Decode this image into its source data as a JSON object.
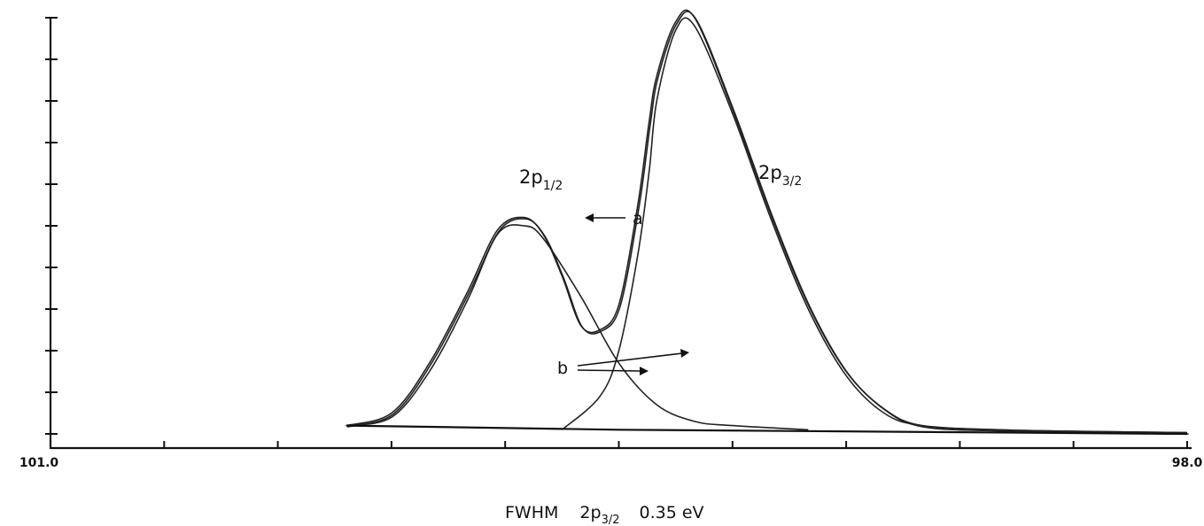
{
  "chart_data": {
    "type": "line",
    "title": "",
    "xlabel": "",
    "ylabel": "",
    "x_reversed": true,
    "xlim": [
      101.0,
      98.0
    ],
    "ylim": [
      0,
      1.0
    ],
    "x_tick_labels": [
      "101.0",
      "98.0"
    ],
    "y_ticks": 10,
    "x_ticks": [
      101.0,
      100.7,
      100.4,
      100.1,
      99.8,
      99.5,
      99.2,
      98.9,
      98.6,
      98.3,
      98.0
    ],
    "series": [
      {
        "role": "a",
        "x": [
          100.22,
          100.1,
          100.0,
          99.9,
          99.82,
          99.75,
          99.7,
          99.65,
          99.6,
          99.55,
          99.5,
          99.45,
          99.42,
          99.4,
          99.35,
          99.3,
          99.2,
          99.1,
          99.0,
          98.9,
          98.8,
          98.7,
          98.5,
          98.2,
          98.0
        ],
        "y": [
          0.02,
          0.05,
          0.17,
          0.34,
          0.49,
          0.52,
          0.48,
          0.38,
          0.26,
          0.25,
          0.31,
          0.55,
          0.75,
          0.86,
          0.99,
          1.0,
          0.78,
          0.53,
          0.31,
          0.15,
          0.06,
          0.02,
          0.01,
          0.005,
          0.003
        ]
      },
      {
        "role": "b",
        "peak": "2p1/2",
        "x": [
          100.22,
          100.1,
          100.0,
          99.9,
          99.82,
          99.75,
          99.7,
          99.6,
          99.5,
          99.4,
          99.3,
          99.2,
          99.0
        ],
        "y": [
          0.02,
          0.04,
          0.15,
          0.32,
          0.48,
          0.5,
          0.47,
          0.33,
          0.17,
          0.07,
          0.03,
          0.02,
          0.01
        ]
      },
      {
        "role": "b",
        "peak": "2p3/2",
        "x": [
          99.65,
          99.55,
          99.5,
          99.45,
          99.42,
          99.4,
          99.35,
          99.3,
          99.2,
          99.1,
          99.0,
          98.9,
          98.8,
          98.7,
          98.5,
          98.2,
          98.0
        ],
        "y": [
          0.01,
          0.09,
          0.2,
          0.43,
          0.63,
          0.8,
          0.97,
          0.98,
          0.77,
          0.52,
          0.3,
          0.14,
          0.05,
          0.02,
          0.01,
          0.005,
          0.003
        ]
      },
      {
        "role": "background",
        "x": [
          100.22,
          99.5,
          98.0
        ],
        "y": [
          0.02,
          0.01,
          0.0
        ]
      }
    ],
    "annotations": {
      "peak_left": {
        "main": "2p",
        "sub": "1/2"
      },
      "peak_right": {
        "main": "2p",
        "sub": "3/2"
      },
      "arrow_a": "a",
      "arrow_b": "b",
      "caption": {
        "prefix": "FWHM",
        "main": "2p",
        "sub": "3/2",
        "value": "0.35 eV"
      }
    }
  }
}
